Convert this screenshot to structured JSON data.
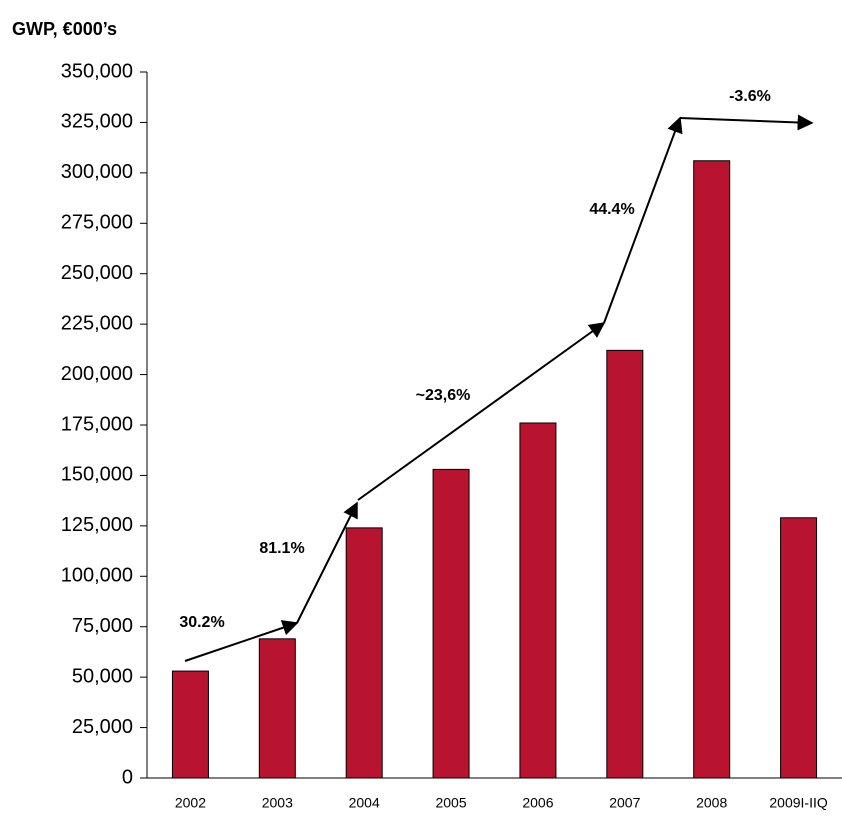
{
  "chart_data": {
    "type": "bar",
    "title": "GWP, €000’s",
    "categories": [
      "2002",
      "2003",
      "2004",
      "2005",
      "2006",
      "2007",
      "2008",
      "2009I-IIQ"
    ],
    "values": [
      53000,
      69000,
      124000,
      153000,
      176000,
      212000,
      306000,
      129000
    ],
    "color": "#b8142f",
    "ylim": [
      0,
      350000
    ],
    "yticks": [
      0,
      {
        "value": 25000,
        "label": "25,000"
      },
      {
        "value": 50000,
        "label": "50,000"
      },
      {
        "value": 75000,
        "label": "75,000"
      },
      {
        "value": 100000,
        "label": "100,000"
      },
      {
        "value": 125000,
        "label": "125,000"
      },
      {
        "value": 150000,
        "label": "150,000"
      },
      {
        "value": 175000,
        "label": "175,000"
      },
      {
        "value": 200000,
        "label": "200,000"
      },
      {
        "value": 225000,
        "label": "225,000"
      },
      {
        "value": 250000,
        "label": "250,000"
      },
      {
        "value": 275000,
        "label": "275,000"
      },
      {
        "value": 300000,
        "label": "300,000"
      },
      {
        "value": 325000,
        "label": "325,000"
      },
      {
        "value": 350000,
        "label": "350,000"
      }
    ],
    "grid": false,
    "annotations": [
      "30.2%",
      "81.1%",
      "~23,6%",
      "44.4%",
      "-3.6%"
    ]
  }
}
